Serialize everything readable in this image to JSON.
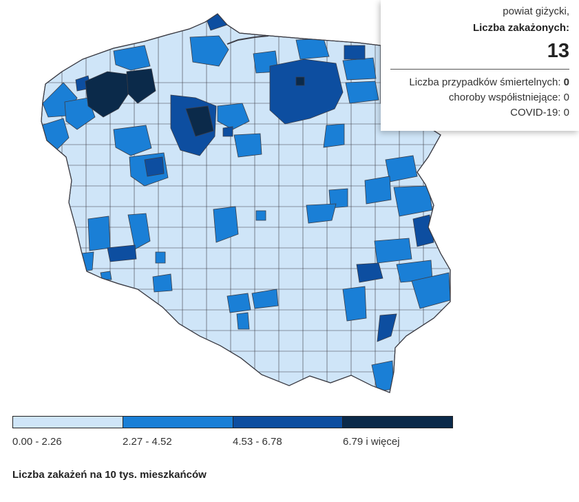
{
  "tooltip": {
    "county": "powiat giżycki,",
    "cases_label": "Liczba zakażonych:",
    "cases_value": "13",
    "deaths_label": "Liczba przypadków śmiertelnych:",
    "deaths_value": "0",
    "comorbid_label": "choroby współistniejące:",
    "comorbid_value": "0",
    "covid_label": "COVID-19:",
    "covid_value": "0"
  },
  "legend": {
    "bins": [
      {
        "label": "0.00 - 2.26",
        "color": "#cfe5f8"
      },
      {
        "label": "2.27 - 4.52",
        "color": "#1a7fd6"
      },
      {
        "label": "4.53 - 6.78",
        "color": "#0d4ea0"
      },
      {
        "label": "6.79 i więcej",
        "color": "#0b2a4a"
      }
    ]
  },
  "caption": "Liczba zakażeń na 10 tys. mieszkańców",
  "colors": {
    "border": "#3c3c44",
    "background": "#ffffff"
  }
}
